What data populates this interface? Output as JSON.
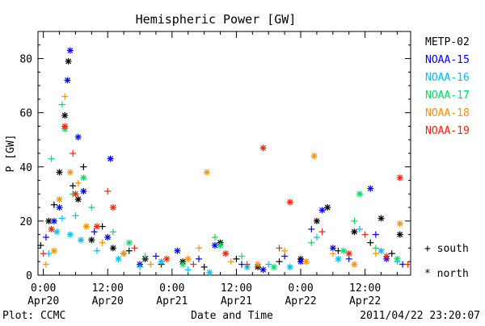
{
  "chart_data": {
    "type": "scatter",
    "title": "Hemispheric Power [GW]",
    "xlabel": "Date and Time",
    "ylabel": "P [GW]",
    "footer_left": "Plot: CCMC",
    "footer_right": "2011/04/22 23:20:07",
    "xlim": [
      "2011-04-19T23:00",
      "2011-04-22T20:30"
    ],
    "ylim": [
      0,
      90
    ],
    "x_ticks": [
      {
        "at": "2011-04-20T00:00",
        "line1": "0:00",
        "line2": "Apr20"
      },
      {
        "at": "2011-04-20T12:00",
        "line1": "12:00",
        "line2": "Apr20"
      },
      {
        "at": "2011-04-21T00:00",
        "line1": "0:00",
        "line2": "Apr21"
      },
      {
        "at": "2011-04-21T12:00",
        "line1": "12:00",
        "line2": "Apr21"
      },
      {
        "at": "2011-04-22T00:00",
        "line1": "0:00",
        "line2": "Apr22"
      },
      {
        "at": "2011-04-22T12:00",
        "line1": "12:00",
        "line2": "Apr22"
      }
    ],
    "y_ticks": [
      0,
      20,
      40,
      60,
      80
    ],
    "legend_position": "right",
    "markers": {
      "south": "+ south",
      "north": "* north"
    },
    "series": [
      {
        "name": "METP-02",
        "color": "#000000",
        "points": [
          [
            "2011-04-19T23:30",
            11,
            "s"
          ],
          [
            "2011-04-20T01:00",
            20,
            "n"
          ],
          [
            "2011-04-20T02:00",
            26,
            "s"
          ],
          [
            "2011-04-20T03:00",
            38,
            "n"
          ],
          [
            "2011-04-20T04:00",
            59,
            "n"
          ],
          [
            "2011-04-20T04:40",
            79,
            "n"
          ],
          [
            "2011-04-20T05:30",
            33,
            "s"
          ],
          [
            "2011-04-20T06:30",
            28,
            "n"
          ],
          [
            "2011-04-20T07:30",
            40,
            "s"
          ],
          [
            "2011-04-20T09:00",
            13,
            "n"
          ],
          [
            "2011-04-20T11:00",
            18,
            "s"
          ],
          [
            "2011-04-20T13:00",
            10,
            "n"
          ],
          [
            "2011-04-20T16:00",
            9,
            "s"
          ],
          [
            "2011-04-20T19:00",
            6,
            "n"
          ],
          [
            "2011-04-20T22:00",
            4,
            "s"
          ],
          [
            "2011-04-21T02:00",
            5,
            "n"
          ],
          [
            "2011-04-21T06:00",
            3,
            "s"
          ],
          [
            "2011-04-21T09:00",
            12,
            "n"
          ],
          [
            "2011-04-21T12:00",
            6,
            "s"
          ],
          [
            "2011-04-21T16:00",
            3,
            "n"
          ],
          [
            "2011-04-21T20:00",
            5,
            "s"
          ],
          [
            "2011-04-22T00:00",
            6,
            "n"
          ],
          [
            "2011-04-22T03:00",
            20,
            "n"
          ],
          [
            "2011-04-22T05:00",
            25,
            "n"
          ],
          [
            "2011-04-22T07:00",
            9,
            "s"
          ],
          [
            "2011-04-22T10:00",
            16,
            "n"
          ],
          [
            "2011-04-22T13:00",
            12,
            "s"
          ],
          [
            "2011-04-22T15:00",
            21,
            "n"
          ],
          [
            "2011-04-22T17:00",
            8,
            "s"
          ],
          [
            "2011-04-22T18:30",
            15,
            "n"
          ]
        ]
      },
      {
        "name": "NOAA-15",
        "color": "#0000ff",
        "points": [
          [
            "2011-04-20T00:30",
            14,
            "s"
          ],
          [
            "2011-04-20T02:00",
            20,
            "n"
          ],
          [
            "2011-04-20T03:00",
            25,
            "n"
          ],
          [
            "2011-04-20T04:30",
            72,
            "n"
          ],
          [
            "2011-04-20T05:00",
            83,
            "n"
          ],
          [
            "2011-04-20T06:30",
            51,
            "n"
          ],
          [
            "2011-04-20T07:30",
            31,
            "n"
          ],
          [
            "2011-04-20T09:30",
            16,
            "s"
          ],
          [
            "2011-04-20T12:00",
            14,
            "n"
          ],
          [
            "2011-04-20T12:30",
            43,
            "n"
          ],
          [
            "2011-04-20T15:00",
            8,
            "s"
          ],
          [
            "2011-04-20T18:00",
            4,
            "n"
          ],
          [
            "2011-04-20T21:00",
            7,
            "s"
          ],
          [
            "2011-04-21T01:00",
            9,
            "n"
          ],
          [
            "2011-04-21T05:00",
            6,
            "s"
          ],
          [
            "2011-04-21T08:00",
            11,
            "n"
          ],
          [
            "2011-04-21T13:00",
            4,
            "s"
          ],
          [
            "2011-04-21T17:00",
            2,
            "n"
          ],
          [
            "2011-04-21T21:00",
            7,
            "s"
          ],
          [
            "2011-04-22T00:00",
            5,
            "n"
          ],
          [
            "2011-04-22T02:00",
            17,
            "s"
          ],
          [
            "2011-04-22T04:00",
            24,
            "n"
          ],
          [
            "2011-04-22T06:00",
            10,
            "n"
          ],
          [
            "2011-04-22T09:00",
            6,
            "s"
          ],
          [
            "2011-04-22T13:00",
            32,
            "n"
          ],
          [
            "2011-04-22T14:00",
            15,
            "s"
          ],
          [
            "2011-04-22T16:00",
            6,
            "n"
          ],
          [
            "2011-04-22T19:00",
            4,
            "s"
          ]
        ]
      },
      {
        "name": "NOAA-16",
        "color": "#00bfff",
        "points": [
          [
            "2011-04-20T01:00",
            8,
            "s"
          ],
          [
            "2011-04-20T02:30",
            16,
            "n"
          ],
          [
            "2011-04-20T03:30",
            21,
            "s"
          ],
          [
            "2011-04-20T05:00",
            15,
            "n"
          ],
          [
            "2011-04-20T06:00",
            22,
            "s"
          ],
          [
            "2011-04-20T07:00",
            13,
            "n"
          ],
          [
            "2011-04-20T10:00",
            9,
            "s"
          ],
          [
            "2011-04-20T14:00",
            6,
            "n"
          ],
          [
            "2011-04-20T18:00",
            3,
            "s"
          ],
          [
            "2011-04-20T22:00",
            5,
            "n"
          ],
          [
            "2011-04-21T03:00",
            2,
            "s"
          ],
          [
            "2011-04-21T07:00",
            1,
            "n"
          ],
          [
            "2011-04-21T10:00",
            8,
            "s"
          ],
          [
            "2011-04-21T14:00",
            3,
            "n"
          ],
          [
            "2011-04-21T18:00",
            4,
            "s"
          ],
          [
            "2011-04-21T22:00",
            3,
            "n"
          ],
          [
            "2011-04-22T03:00",
            14,
            "s"
          ],
          [
            "2011-04-22T07:00",
            6,
            "n"
          ],
          [
            "2011-04-22T11:00",
            17,
            "s"
          ],
          [
            "2011-04-22T15:00",
            9,
            "n"
          ],
          [
            "2011-04-22T18:00",
            5,
            "s"
          ]
        ]
      },
      {
        "name": "NOAA-17",
        "color": "#00e060",
        "points": [
          [
            "2011-04-20T01:30",
            43,
            "s"
          ],
          [
            "2011-04-20T03:30",
            63,
            "s"
          ],
          [
            "2011-04-20T04:00",
            54,
            "n"
          ],
          [
            "2011-04-20T05:30",
            30,
            "s"
          ],
          [
            "2011-04-20T07:30",
            36,
            "n"
          ],
          [
            "2011-04-20T09:00",
            25,
            "s"
          ],
          [
            "2011-04-20T13:00",
            16,
            "s"
          ],
          [
            "2011-04-20T16:00",
            12,
            "n"
          ],
          [
            "2011-04-20T19:00",
            7,
            "s"
          ],
          [
            "2011-04-21T02:00",
            4,
            "n"
          ],
          [
            "2011-04-21T08:00",
            14,
            "s"
          ],
          [
            "2011-04-21T09:00",
            11,
            "n"
          ],
          [
            "2011-04-21T13:00",
            7,
            "s"
          ],
          [
            "2011-04-21T19:00",
            3,
            "n"
          ],
          [
            "2011-04-22T02:00",
            12,
            "s"
          ],
          [
            "2011-04-22T08:00",
            9,
            "n"
          ],
          [
            "2011-04-22T10:00",
            20,
            "s"
          ],
          [
            "2011-04-22T11:00",
            30,
            "n"
          ],
          [
            "2011-04-22T14:00",
            10,
            "s"
          ],
          [
            "2011-04-22T18:00",
            6,
            "n"
          ]
        ]
      },
      {
        "name": "NOAA-18",
        "color": "#ff9000",
        "points": [
          [
            "2011-04-20T00:30",
            4,
            "s"
          ],
          [
            "2011-04-20T02:00",
            9,
            "n"
          ],
          [
            "2011-04-20T03:00",
            28,
            "n"
          ],
          [
            "2011-04-20T04:00",
            66,
            "s"
          ],
          [
            "2011-04-20T05:00",
            38,
            "n"
          ],
          [
            "2011-04-20T06:30",
            34,
            "s"
          ],
          [
            "2011-04-20T08:00",
            18,
            "n"
          ],
          [
            "2011-04-20T11:00",
            12,
            "s"
          ],
          [
            "2011-04-20T15:00",
            8,
            "n"
          ],
          [
            "2011-04-20T20:00",
            4,
            "s"
          ],
          [
            "2011-04-21T03:00",
            6,
            "n"
          ],
          [
            "2011-04-21T05:00",
            10,
            "s"
          ],
          [
            "2011-04-21T06:30",
            38,
            "n"
          ],
          [
            "2011-04-21T11:00",
            5,
            "s"
          ],
          [
            "2011-04-21T16:00",
            4,
            "n"
          ],
          [
            "2011-04-21T21:00",
            9,
            "s"
          ],
          [
            "2011-04-22T01:00",
            5,
            "n"
          ],
          [
            "2011-04-22T02:30",
            44,
            "n"
          ],
          [
            "2011-04-22T06:00",
            8,
            "s"
          ],
          [
            "2011-04-22T10:00",
            4,
            "n"
          ],
          [
            "2011-04-22T14:00",
            8,
            "s"
          ],
          [
            "2011-04-22T18:30",
            19,
            "n"
          ]
        ]
      },
      {
        "name": "NOAA-19",
        "color": "#ff2000",
        "points": [
          [
            "2011-04-20T00:00",
            8,
            "s"
          ],
          [
            "2011-04-20T01:30",
            17,
            "n"
          ],
          [
            "2011-04-20T04:00",
            55,
            "n"
          ],
          [
            "2011-04-20T05:30",
            45,
            "s"
          ],
          [
            "2011-04-20T06:00",
            30,
            "n"
          ],
          [
            "2011-04-20T10:00",
            18,
            "n"
          ],
          [
            "2011-04-20T12:00",
            31,
            "s"
          ],
          [
            "2011-04-20T13:00",
            25,
            "n"
          ],
          [
            "2011-04-20T17:00",
            10,
            "s"
          ],
          [
            "2011-04-20T23:00",
            6,
            "n"
          ],
          [
            "2011-04-21T04:00",
            4,
            "s"
          ],
          [
            "2011-04-21T10:00",
            8,
            "n"
          ],
          [
            "2011-04-21T14:00",
            4,
            "s"
          ],
          [
            "2011-04-21T17:00",
            47,
            "n"
          ],
          [
            "2011-04-21T20:00",
            10,
            "s"
          ],
          [
            "2011-04-21T22:00",
            27,
            "n"
          ],
          [
            "2011-04-22T04:00",
            16,
            "s"
          ],
          [
            "2011-04-22T09:00",
            8,
            "n"
          ],
          [
            "2011-04-22T12:00",
            15,
            "s"
          ],
          [
            "2011-04-22T16:00",
            7,
            "n"
          ],
          [
            "2011-04-22T18:30",
            36,
            "n"
          ],
          [
            "2011-04-22T20:00",
            4,
            "s"
          ]
        ]
      }
    ]
  }
}
